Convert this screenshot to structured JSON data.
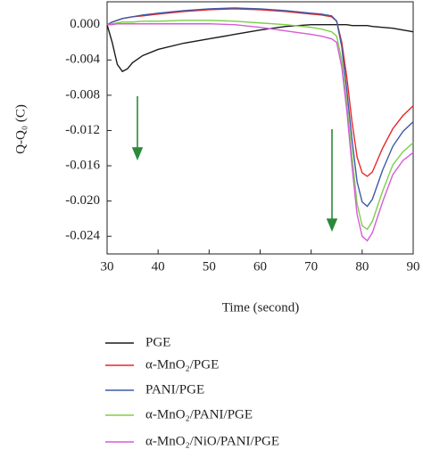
{
  "chart_data": {
    "type": "line",
    "xlabel": "Time (second)",
    "ylabel": "Q-Q₀ (C)",
    "x": [
      30,
      31,
      32,
      33,
      34,
      35,
      37,
      40,
      45,
      50,
      55,
      60,
      65,
      70,
      72,
      74,
      75,
      76,
      77,
      78,
      79,
      80,
      81,
      82,
      84,
      86,
      88,
      90
    ],
    "xlim": [
      30,
      90
    ],
    "xticks": [
      30,
      40,
      50,
      60,
      70,
      80,
      90
    ],
    "ylim": [
      -0.026,
      0.0026
    ],
    "yticks": [
      {
        "value": 0,
        "label": "0.000"
      },
      -0.004,
      -0.008,
      {
        "value": -0.012,
        "label": "-0.012"
      },
      {
        "value": -0.016,
        "label": "-0.016"
      },
      {
        "value": -0.02,
        "label": "-0.020"
      },
      -0.024
    ],
    "series": [
      {
        "name": "PGE",
        "color": "#1a1a1a",
        "values": [
          0,
          -0.002,
          -0.0045,
          -0.0053,
          -0.005,
          -0.0043,
          -0.0035,
          -0.0028,
          -0.0021,
          -0.0016,
          -0.0011,
          -0.0006,
          -0.0002,
          0,
          0,
          0,
          0,
          0,
          0,
          -0.0001,
          -0.0001,
          -0.0001,
          -0.0001,
          -0.0002,
          -0.0003,
          -0.0004,
          -0.0006,
          -0.0008
        ]
      },
      {
        "name": "α-MnO₂/PGE",
        "color": "#e8262a",
        "values": [
          0,
          0.0003,
          0.0005,
          0.0007,
          0.0008,
          0.0009,
          0.001,
          0.0012,
          0.0015,
          0.0017,
          0.0018,
          0.0017,
          0.0015,
          0.0012,
          0.0011,
          0.0009,
          0.0004,
          -0.002,
          -0.006,
          -0.011,
          -0.015,
          -0.0168,
          -0.0172,
          -0.0167,
          -0.014,
          -0.0118,
          -0.0103,
          -0.0092
        ]
      },
      {
        "name": "PANI/PGE",
        "color": "#3d5aa8",
        "values": [
          0,
          0.0003,
          0.0005,
          0.0007,
          0.0008,
          0.0009,
          0.0011,
          0.0013,
          0.0016,
          0.0018,
          0.0019,
          0.0018,
          0.0016,
          0.0013,
          0.0012,
          0.001,
          0.0004,
          -0.0025,
          -0.0075,
          -0.013,
          -0.0178,
          -0.0201,
          -0.0206,
          -0.0198,
          -0.0165,
          -0.0138,
          -0.0121,
          -0.011
        ]
      },
      {
        "name": "α-MnO₂/PANI/PGE",
        "color": "#7ccf4a",
        "values": [
          0,
          0.0001,
          0.0002,
          0.0003,
          0.0003,
          0.0003,
          0.0004,
          0.0004,
          0.0005,
          0.0005,
          0.0004,
          0.0002,
          0,
          -0.0003,
          -0.0005,
          -0.0008,
          -0.0013,
          -0.004,
          -0.009,
          -0.0148,
          -0.0203,
          -0.0228,
          -0.0232,
          -0.0223,
          -0.0189,
          -0.0159,
          -0.0144,
          -0.0134
        ]
      },
      {
        "name": "α-MnO₂/NiO/PANI/PGE",
        "color": "#d65cd6",
        "values": [
          0,
          0,
          0.0001,
          0.0001,
          0.0001,
          0.0001,
          0.0001,
          0.0001,
          0.0001,
          0.0001,
          0,
          -0.0003,
          -0.0007,
          -0.0011,
          -0.0013,
          -0.0016,
          -0.002,
          -0.0048,
          -0.0098,
          -0.016,
          -0.0215,
          -0.024,
          -0.0245,
          -0.0236,
          -0.0201,
          -0.017,
          -0.0154,
          -0.0145
        ]
      }
    ]
  }
}
